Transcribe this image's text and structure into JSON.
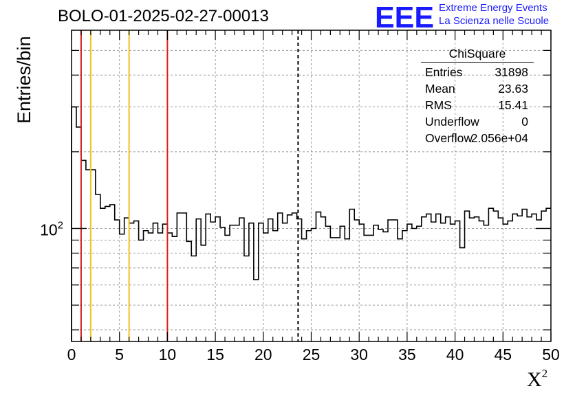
{
  "header": {
    "run_title": "BOLO-01-2025-02-27-00013",
    "logo_letters": "EEE",
    "logo_line1": "Extreme Energy Events",
    "logo_line2": "La Scienza nelle Scuole"
  },
  "chart_data": {
    "type": "histogram",
    "title": "BOLO-01-2025-02-27-00013",
    "xlabel_base": "X",
    "xlabel_sup": "2",
    "ylabel": "Entries/bin",
    "xlim": [
      0,
      50
    ],
    "ylim": [
      36,
      600
    ],
    "yscale": "log",
    "bin_width": 0.5,
    "x_ticks": [
      0,
      5,
      10,
      15,
      20,
      25,
      30,
      35,
      40,
      45,
      50
    ],
    "y_tick_label_base": "10",
    "y_tick_label_exp": "2",
    "y_tick_value": 100,
    "grid": true,
    "bin_values": [
      300,
      250,
      185,
      170,
      170,
      136,
      120,
      122,
      124,
      108,
      95,
      110,
      105,
      107,
      90,
      98,
      96,
      105,
      96,
      104,
      96,
      93,
      115,
      115,
      89,
      78,
      109,
      86,
      114,
      106,
      111,
      101,
      94,
      103,
      103,
      110,
      78,
      105,
      63,
      105,
      96,
      109,
      98,
      115,
      105,
      113,
      115,
      109,
      91,
      98,
      100,
      116,
      111,
      102,
      92,
      92,
      102,
      91,
      119,
      108,
      104,
      94,
      94,
      103,
      99,
      97,
      108,
      108,
      91,
      98,
      104,
      100,
      102,
      111,
      114,
      106,
      114,
      105,
      111,
      104,
      107,
      84,
      117,
      110,
      111,
      107,
      103,
      120,
      117,
      110,
      104,
      107,
      114,
      112,
      119,
      111,
      114,
      108,
      117,
      120
    ],
    "vertical_lines": [
      {
        "x": 1,
        "color": "#d42020",
        "style": "solid"
      },
      {
        "x": 2,
        "color": "#f0c020",
        "style": "solid"
      },
      {
        "x": 6,
        "color": "#f0c020",
        "style": "solid"
      },
      {
        "x": 10,
        "color": "#d42020",
        "style": "solid"
      },
      {
        "x": 23.63,
        "color": "#000000",
        "style": "dashed"
      }
    ],
    "stats_box": {
      "title": "ChiSquare",
      "rows": [
        {
          "key": "Entries",
          "value": "31898"
        },
        {
          "key": "Mean",
          "value": "23.63"
        },
        {
          "key": "RMS",
          "value": "15.41"
        },
        {
          "key": "Underflow",
          "value": "0"
        },
        {
          "key": "Overflow",
          "value": "2.056e+04"
        }
      ]
    }
  },
  "colors": {
    "logo_blue": "#1a1aff",
    "grid": "#9a9a9a",
    "histogram": "#000000"
  }
}
